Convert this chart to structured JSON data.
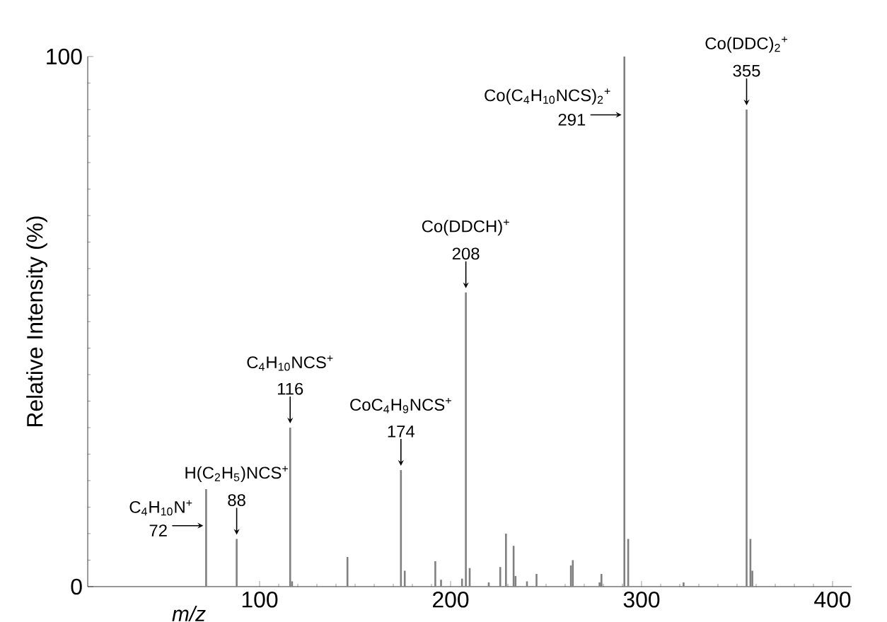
{
  "chart_data": {
    "type": "bar",
    "xlabel": "m/z",
    "ylabel": "Relative Intensity (%)",
    "color": "#808080",
    "x": [
      72,
      88,
      116,
      117,
      146,
      174,
      176,
      192,
      195,
      206,
      208,
      210,
      220,
      226,
      229,
      233,
      234,
      240,
      245,
      263,
      264,
      278,
      279,
      291,
      293,
      322,
      355,
      357,
      358
    ],
    "values": [
      18.4,
      9,
      30,
      1,
      5.6,
      22,
      3,
      4.8,
      1.3,
      1.5,
      55.5,
      3.5,
      0.8,
      3.7,
      10,
      7.7,
      2,
      1,
      2.4,
      4,
      5,
      0.8,
      2.4,
      100,
      9,
      0.8,
      90,
      9,
      3
    ],
    "xlim": [
      10,
      410
    ],
    "ylim": [
      0,
      100
    ],
    "xticks": [
      100,
      200,
      300,
      400
    ],
    "yticks": [
      0,
      100
    ],
    "annotations": [
      "C$_{4}$H$_{10}$N$^{+}$",
      {
        "text": "72",
        "x": 72,
        "y": 11.5
      },
      "H(C$_{2}$H$_{5}$)NCS$^{+}$",
      {
        "text": "88",
        "x": 88,
        "y": 9
      },
      "C$_{4}$H$_{10}$NCS$^{+}$",
      {
        "text": "116",
        "x": 116,
        "y": 30
      },
      "CoC$_{4}$H$_{9}$NCS$^{+}$",
      {
        "text": "174",
        "x": 174,
        "y": 22
      },
      "Co(DDCH)$^{+}$",
      {
        "text": "208",
        "x": 208,
        "y": 55.5
      },
      "Co(C$_{4}$H$_{10}$NCS)$_{2}$$^{+}$",
      {
        "text": "291",
        "x": 291,
        "y": 89
      },
      "Co(DDC)$_{2}$$^{+}$",
      {
        "text": "355",
        "x": 355,
        "y": 90
      }
    ]
  }
}
